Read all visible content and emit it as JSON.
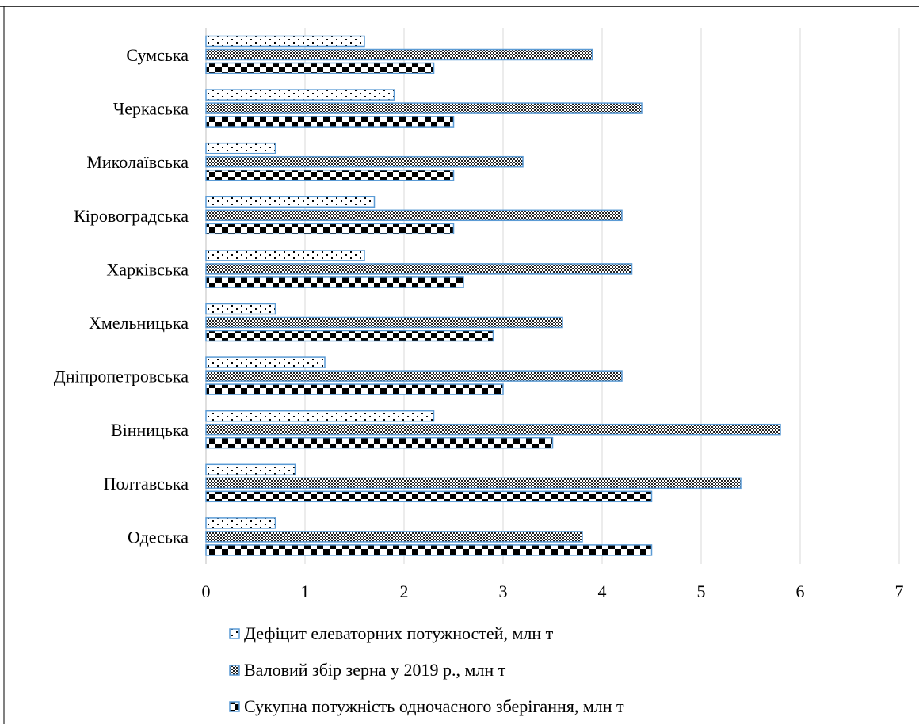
{
  "chart_data": {
    "type": "bar",
    "orientation": "horizontal",
    "categories": [
      "Сумська",
      "Черкаська",
      "Миколаївська",
      "Кіровоградська",
      "Харківська",
      "Хмельницька",
      "Дніпропетровська",
      "Вінницька",
      "Полтавська",
      "Одеська"
    ],
    "series": [
      {
        "name": "Дефіцит елеваторних потужностей, млн т",
        "pattern": "dots",
        "values": [
          1.6,
          1.9,
          0.7,
          1.7,
          1.6,
          0.7,
          1.2,
          2.3,
          0.9,
          0.7
        ]
      },
      {
        "name": "Валовий збір зерна у 2019 р., млн т",
        "pattern": "crosshatch",
        "values": [
          3.9,
          4.4,
          3.2,
          4.2,
          4.3,
          3.6,
          4.2,
          5.8,
          5.4,
          3.8
        ]
      },
      {
        "name": "Сукупна потужність одночасного зберігання, млн т",
        "pattern": "checker",
        "values": [
          2.3,
          2.5,
          2.5,
          2.5,
          2.6,
          2.9,
          3.0,
          3.5,
          4.5,
          4.5
        ]
      }
    ],
    "xlim": [
      0,
      7
    ],
    "xticks": [
      "0",
      "1",
      "2",
      "3",
      "4",
      "5",
      "6",
      "7"
    ],
    "grid": "vertical",
    "legend_position": "bottom",
    "colors": {
      "bar_border": "#5b9bd5",
      "grid": "#d9d9d9",
      "pattern": "#000000"
    }
  }
}
